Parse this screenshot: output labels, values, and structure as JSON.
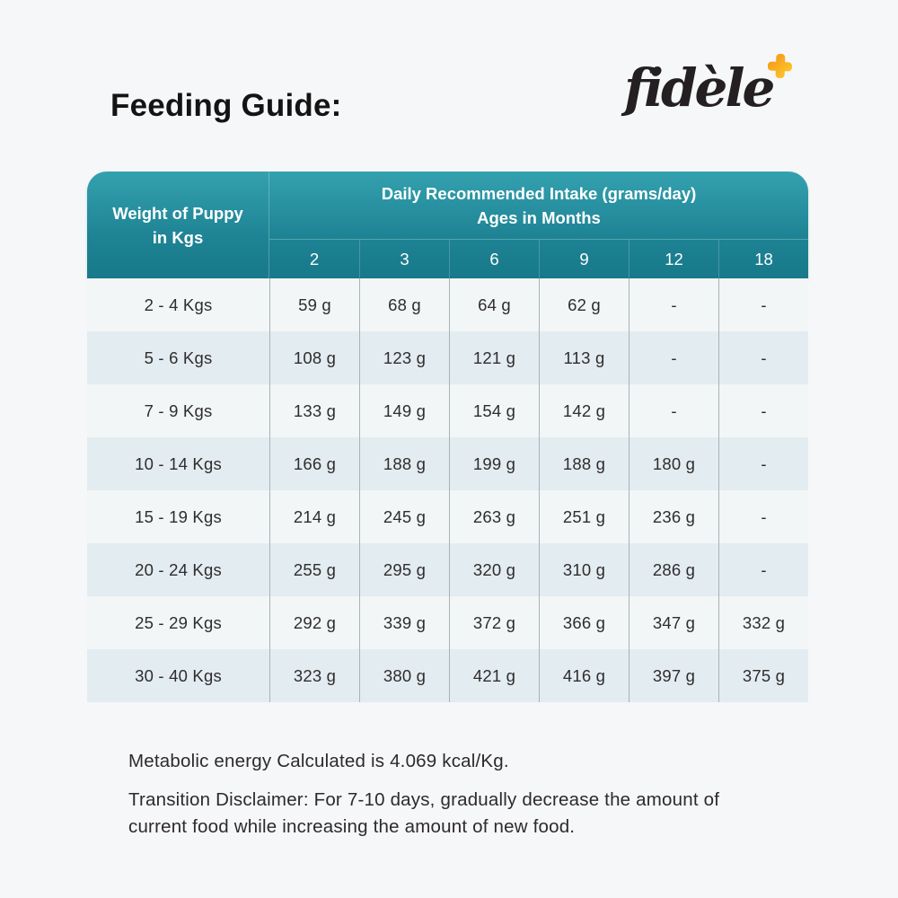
{
  "header": {
    "title": "Feeding Guide:"
  },
  "logo": {
    "text": "fidèle",
    "plus_color": "#f9a61d",
    "text_color": "#242021"
  },
  "chart_data": {
    "type": "table",
    "title": "Feeding Guide:",
    "row_header_line1": "Weight of Puppy",
    "row_header_line2": "in Kgs",
    "group_header_line1": "Daily Recommended Intake (grams/day)",
    "group_header_line2": "Ages in Months",
    "age_columns_months": [
      "2",
      "3",
      "6",
      "9",
      "12",
      "18"
    ],
    "rows": [
      {
        "weight": "2 - 4 Kgs",
        "values": [
          "59 g",
          "68 g",
          "64 g",
          "62 g",
          "-",
          "-"
        ]
      },
      {
        "weight": "5 - 6 Kgs",
        "values": [
          "108 g",
          "123 g",
          "121 g",
          "113 g",
          "-",
          "-"
        ]
      },
      {
        "weight": "7 - 9 Kgs",
        "values": [
          "133 g",
          "149 g",
          "154 g",
          "142 g",
          "-",
          "-"
        ]
      },
      {
        "weight": "10 - 14 Kgs",
        "values": [
          "166 g",
          "188 g",
          "199 g",
          "188 g",
          "180 g",
          "-"
        ]
      },
      {
        "weight": "15 - 19 Kgs",
        "values": [
          "214 g",
          "245 g",
          "263 g",
          "251 g",
          "236 g",
          "-"
        ]
      },
      {
        "weight": "20 - 24 Kgs",
        "values": [
          "255 g",
          "295 g",
          "320 g",
          "310 g",
          "286 g",
          "-"
        ]
      },
      {
        "weight": "25 - 29 Kgs",
        "values": [
          "292 g",
          "339 g",
          "372 g",
          "366 g",
          "347 g",
          "332 g"
        ]
      },
      {
        "weight": "30 - 40 Kgs",
        "values": [
          "323 g",
          "380 g",
          "421 g",
          "416 g",
          "397 g",
          "375 g"
        ]
      }
    ],
    "colors": {
      "header_teal_top": "#34a1af",
      "header_teal_bottom": "#17798a",
      "row_odd": "#f2f6f7",
      "row_even": "#e3ecf1",
      "grid_line": "#a8b3b7",
      "header_text": "#ffffff"
    }
  },
  "notes": {
    "metabolic": "Metabolic energy Calculated is 4.069 kcal/Kg.",
    "disclaimer_line1": "Transition Disclaimer: For 7-10 days, gradually decrease the amount of",
    "disclaimer_line2": "current food while increasing the amount of new food."
  }
}
